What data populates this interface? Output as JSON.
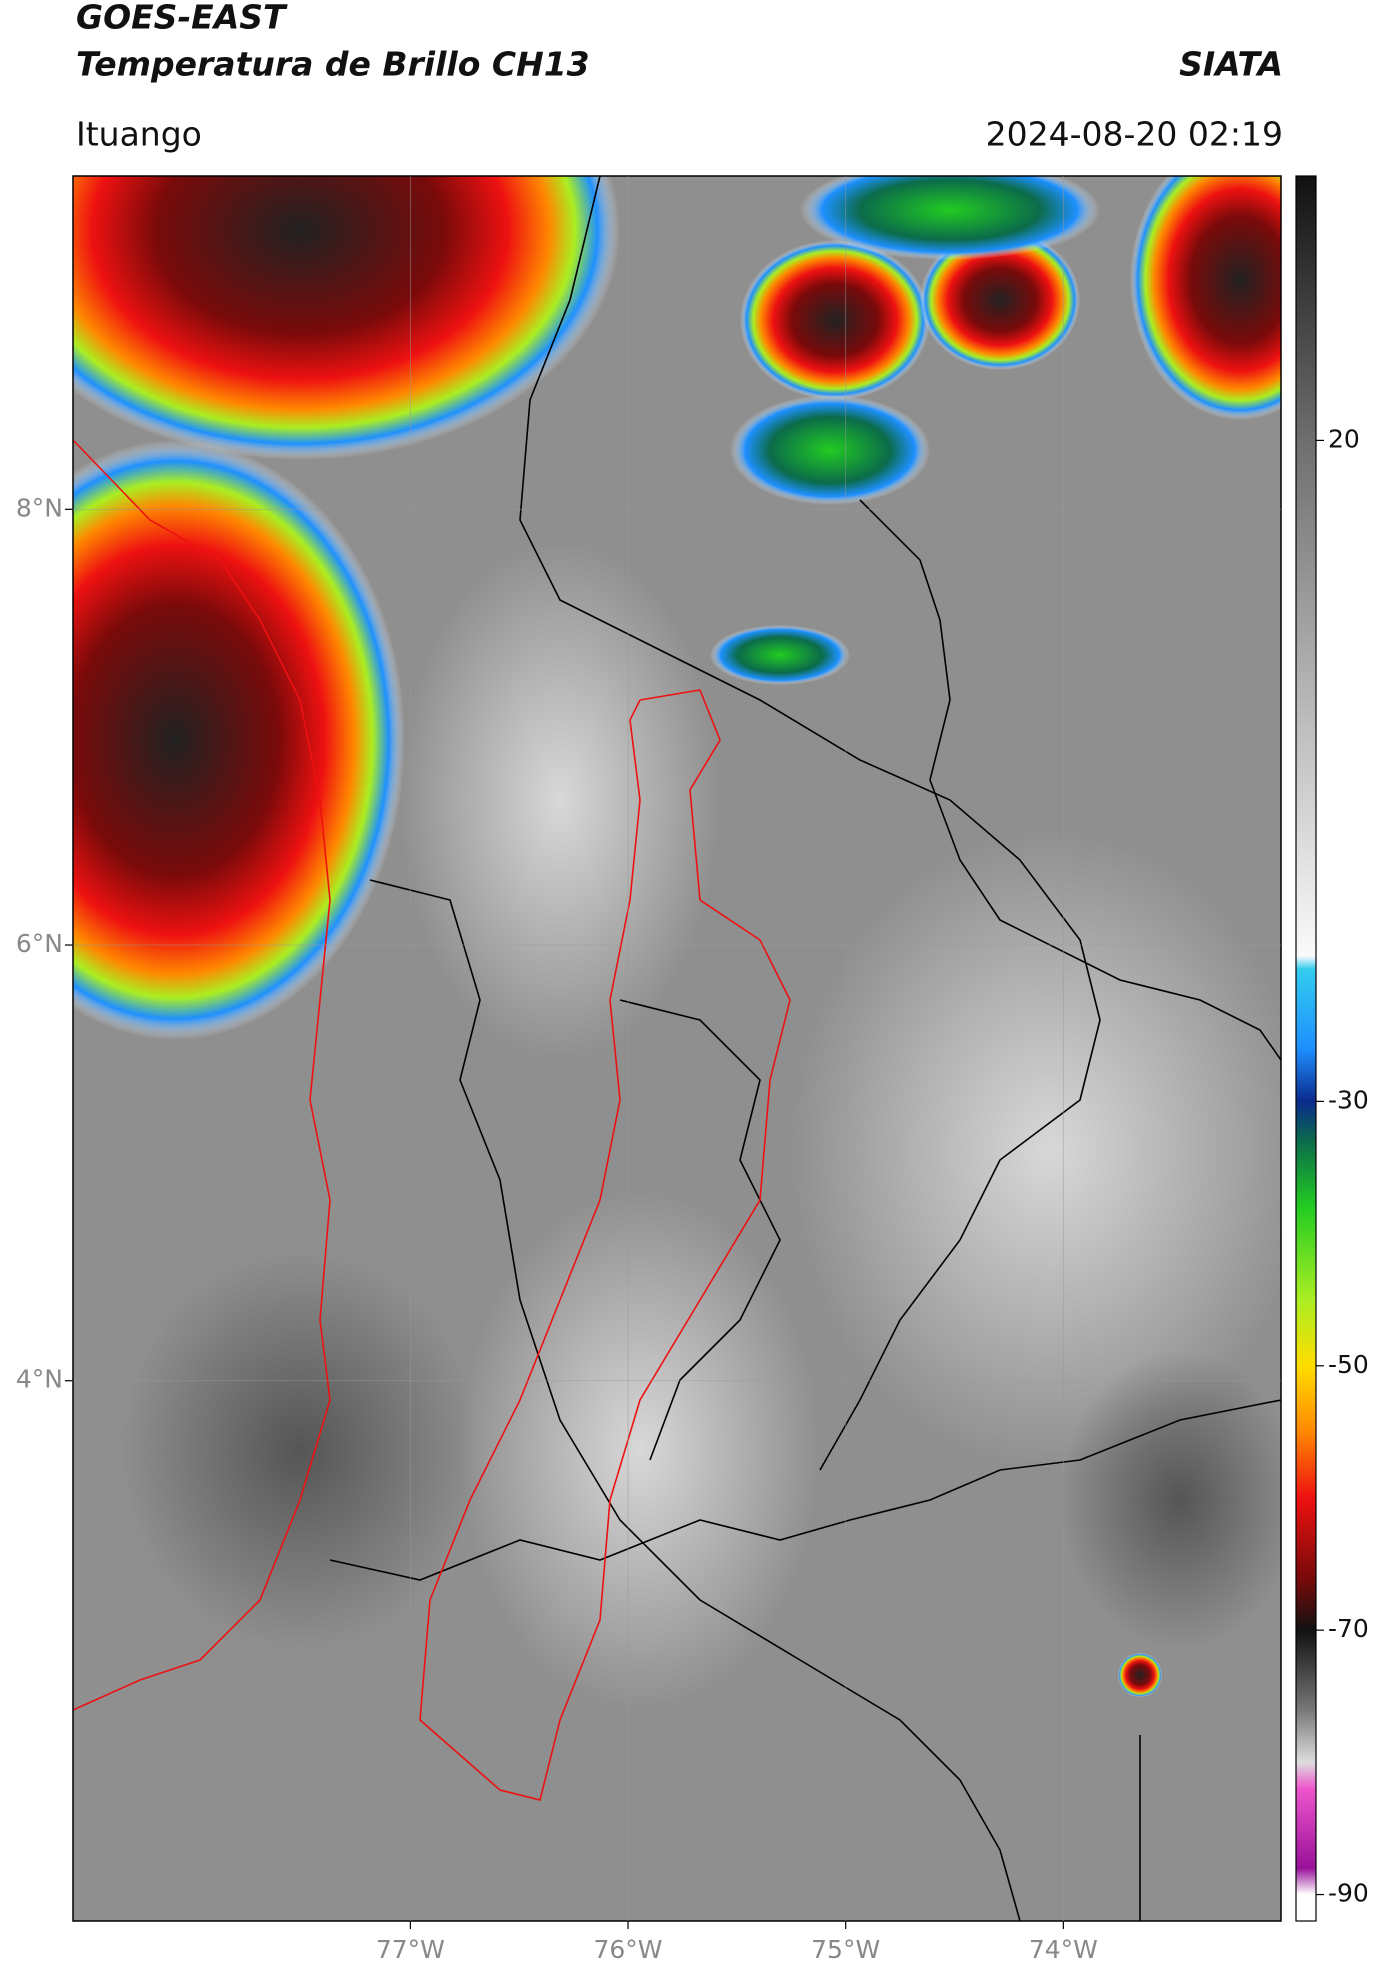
{
  "header": {
    "satellite": "GOES-EAST",
    "product": "Temperatura de Brillo CH13",
    "organization": "SIATA",
    "region": "Ituango",
    "timestamp": "2024-08-20 02:19"
  },
  "map": {
    "xlim": [
      -78.55,
      -73.0
    ],
    "ylim": [
      1.52,
      9.53
    ],
    "xticks": [
      {
        "value": -77,
        "label": "77°W"
      },
      {
        "value": -76,
        "label": "76°W"
      },
      {
        "value": -75,
        "label": "75°W"
      },
      {
        "value": -74,
        "label": "74°W"
      }
    ],
    "yticks": [
      {
        "value": 8,
        "label": "8°N"
      },
      {
        "value": 6,
        "label": "6°N"
      },
      {
        "value": 4,
        "label": "4°N"
      }
    ],
    "grid": true
  },
  "colorbar": {
    "lim": [
      -92,
      40
    ],
    "ticks": [
      20,
      -30,
      -50,
      -70,
      -90
    ],
    "stops": [
      {
        "value": 40,
        "color": "#111111"
      },
      {
        "value": 20,
        "color": "#6e6e6e"
      },
      {
        "value": 0,
        "color": "#b8b8b8"
      },
      {
        "value": -19,
        "color": "#fafafa"
      },
      {
        "value": -20,
        "color": "#33ccee"
      },
      {
        "value": -26,
        "color": "#1e90ff"
      },
      {
        "value": -30,
        "color": "#0a2a8c"
      },
      {
        "value": -33,
        "color": "#0b6b4a"
      },
      {
        "value": -38,
        "color": "#22cc22"
      },
      {
        "value": -45,
        "color": "#aaee22"
      },
      {
        "value": -50,
        "color": "#ffdd00"
      },
      {
        "value": -55,
        "color": "#ff8800"
      },
      {
        "value": -60,
        "color": "#ee1111"
      },
      {
        "value": -66,
        "color": "#7a0a0a"
      },
      {
        "value": -70,
        "color": "#111111"
      },
      {
        "value": -76,
        "color": "#777777"
      },
      {
        "value": -80,
        "color": "#dddddd"
      },
      {
        "value": -82,
        "color": "#ee55cc"
      },
      {
        "value": -88,
        "color": "#991199"
      },
      {
        "value": -90,
        "color": "#ffffff"
      }
    ]
  }
}
